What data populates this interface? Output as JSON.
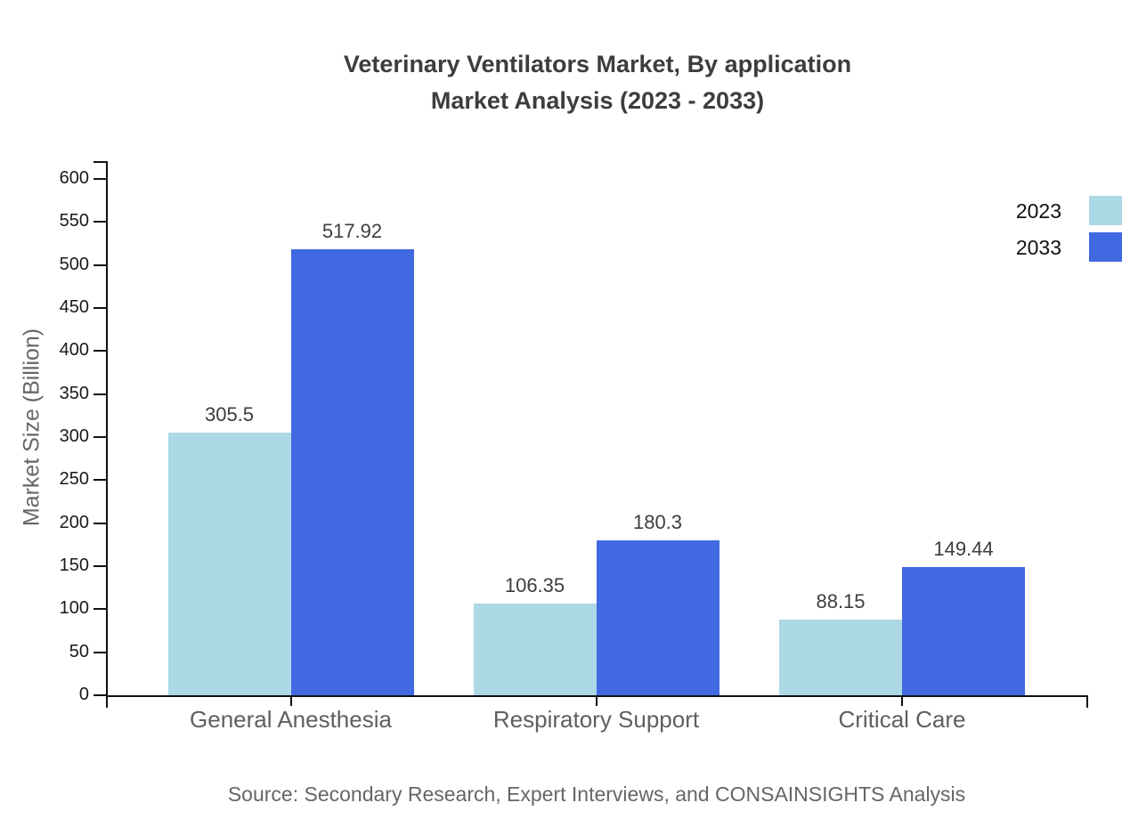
{
  "title": {
    "line1": "Veterinary Ventilators Market, By application",
    "line2": "Market Analysis (2023 - 2033)"
  },
  "source": "Source: Secondary Research, Expert Interviews, and CONSAINSIGHTS Analysis",
  "chart_data": {
    "type": "bar",
    "categories": [
      "General Anesthesia",
      "Respiratory Support",
      "Critical Care"
    ],
    "series": [
      {
        "name": "2023",
        "color": "#add8e6",
        "values": [
          305.5,
          106.35,
          88.15
        ]
      },
      {
        "name": "2033",
        "color": "#4169e1",
        "values": [
          517.92,
          180.3,
          149.44
        ]
      }
    ],
    "ylabel": "Market Size (Billion)",
    "ylim": [
      0,
      620
    ],
    "yticks": [
      0,
      50,
      100,
      150,
      200,
      250,
      300,
      350,
      400,
      450,
      500,
      550,
      600
    ],
    "grid": false,
    "legend_position": "top-right",
    "axis_color": "#111111"
  }
}
